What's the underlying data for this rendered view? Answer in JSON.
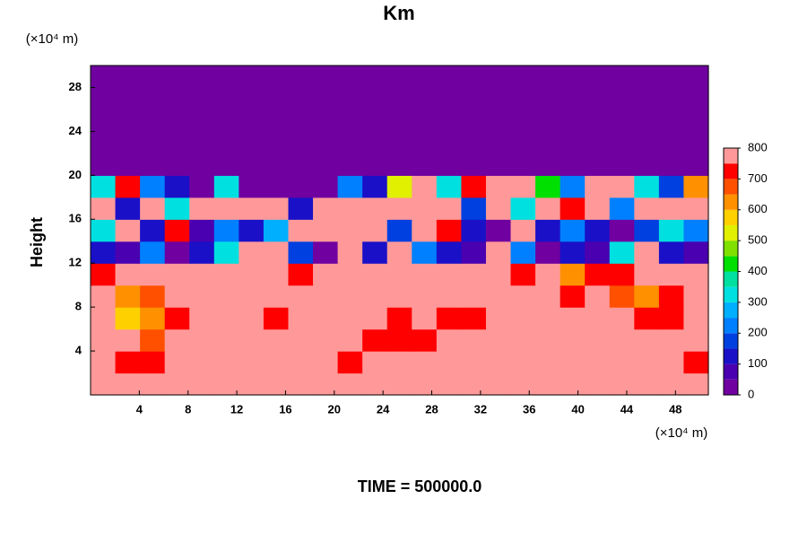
{
  "chart_data": {
    "type": "heatmap",
    "title": "Km",
    "subtitle": "TIME = 500000.0",
    "y_label": "Height",
    "x_unit": "(×10⁴ m)",
    "y_unit": "(×10⁴ m)",
    "xlim": [
      0,
      50.7
    ],
    "xticks": [
      4,
      8,
      12,
      16,
      20,
      24,
      28,
      32,
      36,
      40,
      44,
      48
    ],
    "ylim": [
      0,
      30
    ],
    "yticks": [
      4,
      8,
      12,
      16,
      20,
      24,
      28
    ],
    "zlim": [
      0,
      800
    ],
    "zticks": [
      0,
      100,
      200,
      300,
      400,
      500,
      600,
      700,
      800
    ],
    "colors": [
      "#7000a0",
      "#4a00b0",
      "#1a10c8",
      "#0040e0",
      "#0080ff",
      "#00b0ff",
      "#00e0e0",
      "#00e0a0",
      "#00e000",
      "#80e000",
      "#e0f000",
      "#ffd000",
      "#ff9000",
      "#ff5000",
      "#ff0000",
      "#ff9999"
    ],
    "z": [
      [
        800,
        800,
        800,
        800,
        800,
        800,
        800,
        800,
        800,
        800,
        800,
        800,
        800,
        800,
        800,
        800,
        800,
        800,
        800,
        800,
        800,
        800,
        800,
        800,
        800
      ],
      [
        800,
        700,
        700,
        800,
        800,
        800,
        800,
        800,
        800,
        800,
        700,
        800,
        800,
        800,
        800,
        800,
        800,
        800,
        800,
        800,
        800,
        800,
        800,
        800,
        700
      ],
      [
        800,
        800,
        650,
        800,
        800,
        800,
        800,
        800,
        800,
        800,
        800,
        700,
        700,
        700,
        800,
        800,
        800,
        800,
        800,
        800,
        800,
        800,
        800,
        800,
        800
      ],
      [
        800,
        550,
        600,
        700,
        800,
        800,
        800,
        700,
        800,
        800,
        800,
        800,
        700,
        800,
        700,
        700,
        800,
        800,
        800,
        800,
        800,
        800,
        700,
        700,
        800
      ],
      [
        800,
        600,
        650,
        800,
        800,
        800,
        800,
        800,
        800,
        800,
        800,
        800,
        800,
        800,
        800,
        800,
        800,
        800,
        800,
        700,
        800,
        650,
        600,
        700,
        800
      ],
      [
        700,
        800,
        800,
        800,
        800,
        800,
        800,
        800,
        700,
        800,
        800,
        800,
        800,
        800,
        800,
        800,
        800,
        700,
        800,
        600,
        700,
        700,
        800,
        800,
        800
      ],
      [
        100,
        50,
        200,
        0,
        100,
        300,
        800,
        800,
        150,
        0,
        800,
        100,
        800,
        200,
        100,
        50,
        800,
        200,
        0,
        100,
        50,
        300,
        800,
        100,
        50
      ],
      [
        300,
        800,
        100,
        700,
        50,
        200,
        100,
        250,
        800,
        800,
        800,
        800,
        150,
        800,
        700,
        100,
        0,
        800,
        100,
        200,
        100,
        0,
        150,
        300,
        200
      ],
      [
        800,
        100,
        800,
        300,
        800,
        800,
        800,
        800,
        100,
        800,
        800,
        800,
        800,
        800,
        800,
        150,
        800,
        300,
        800,
        700,
        800,
        200,
        800,
        800,
        800
      ],
      [
        300,
        700,
        200,
        100,
        0,
        300,
        0,
        0,
        0,
        0,
        200,
        100,
        500,
        800,
        300,
        700,
        800,
        800,
        400,
        200,
        800,
        800,
        300,
        150,
        600
      ],
      [
        0,
        0,
        0,
        0,
        0,
        0,
        0,
        0,
        0,
        0,
        0,
        0,
        0,
        0,
        0,
        0,
        0,
        0,
        0,
        0,
        0,
        0,
        0,
        0,
        0
      ],
      [
        0,
        0,
        0,
        0,
        0,
        0,
        0,
        0,
        0,
        0,
        0,
        0,
        0,
        0,
        0,
        0,
        0,
        0,
        0,
        0,
        0,
        0,
        0,
        0,
        0
      ],
      [
        0,
        0,
        0,
        0,
        0,
        0,
        0,
        0,
        0,
        0,
        0,
        0,
        0,
        0,
        0,
        0,
        0,
        0,
        0,
        0,
        0,
        0,
        0,
        0,
        0
      ],
      [
        0,
        0,
        0,
        0,
        0,
        0,
        0,
        0,
        0,
        0,
        0,
        0,
        0,
        0,
        0,
        0,
        0,
        0,
        0,
        0,
        0,
        0,
        0,
        0,
        0
      ],
      [
        0,
        0,
        0,
        0,
        0,
        0,
        0,
        0,
        0,
        0,
        0,
        0,
        0,
        0,
        0,
        0,
        0,
        0,
        0,
        0,
        0,
        0,
        0,
        0,
        0
      ]
    ]
  }
}
